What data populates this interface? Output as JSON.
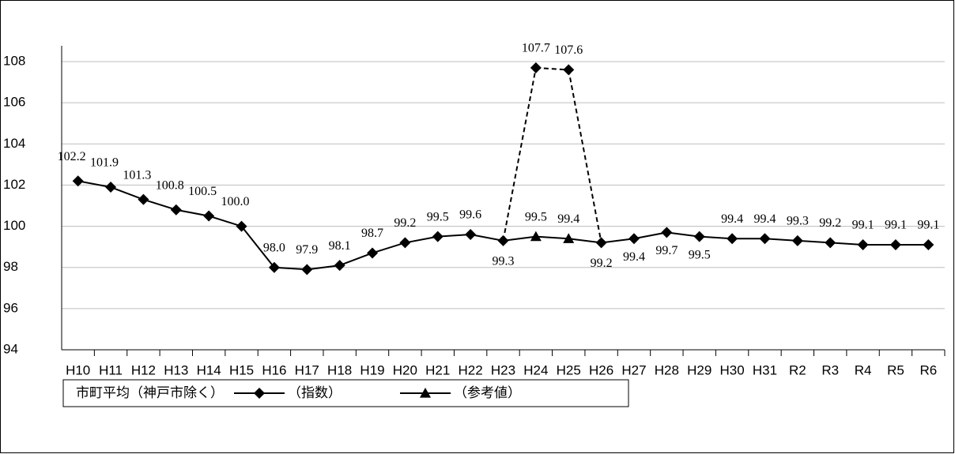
{
  "chart_data": {
    "type": "line",
    "categories": [
      "H10",
      "H11",
      "H12",
      "H13",
      "H14",
      "H15",
      "H16",
      "H17",
      "H18",
      "H19",
      "H20",
      "H21",
      "H22",
      "H23",
      "H24",
      "H25",
      "H26",
      "H27",
      "H28",
      "H29",
      "H30",
      "H31",
      "R2",
      "R3",
      "R4",
      "R5",
      "R6"
    ],
    "legend_title": "市町平均（神戸市除く）",
    "series": [
      {
        "name": "（指数）",
        "color": "#000000",
        "marker": "diamond",
        "values": [
          102.2,
          101.9,
          101.3,
          100.8,
          100.5,
          100.0,
          98.0,
          97.9,
          98.1,
          98.7,
          99.2,
          99.5,
          99.6,
          99.3,
          107.7,
          107.6,
          99.2,
          99.4,
          99.7,
          99.5,
          99.4,
          99.4,
          99.3,
          99.2,
          99.1,
          99.1,
          99.1
        ],
        "value_labels": [
          "102.2",
          "101.9",
          "101.3",
          "100.8",
          "100.5",
          "100.0",
          "98.0",
          "97.9",
          "98.1",
          "98.7",
          "99.2",
          "99.5",
          "99.6",
          "99.3",
          "107.7",
          "107.6",
          "99.2",
          "99.4",
          "99.7",
          "99.5",
          "99.4",
          "99.4",
          "99.3",
          "99.2",
          "99.1",
          "99.1",
          "99.1"
        ]
      },
      {
        "name": "（参考値）",
        "color": "#000000",
        "marker": "triangle",
        "values": [
          null,
          null,
          null,
          null,
          null,
          null,
          null,
          null,
          null,
          null,
          null,
          null,
          null,
          null,
          99.5,
          99.4,
          null,
          null,
          null,
          null,
          null,
          null,
          null,
          null,
          null,
          null,
          null
        ],
        "value_labels": [
          null,
          null,
          null,
          null,
          null,
          null,
          null,
          null,
          null,
          null,
          null,
          null,
          null,
          null,
          "99.5",
          "99.4",
          null,
          null,
          null,
          null,
          null,
          null,
          null,
          null,
          null,
          null,
          null
        ]
      }
    ],
    "ylim": [
      94,
      108
    ],
    "yticks": [
      94,
      96,
      98,
      100,
      102,
      104,
      106,
      108
    ],
    "grid": true
  }
}
